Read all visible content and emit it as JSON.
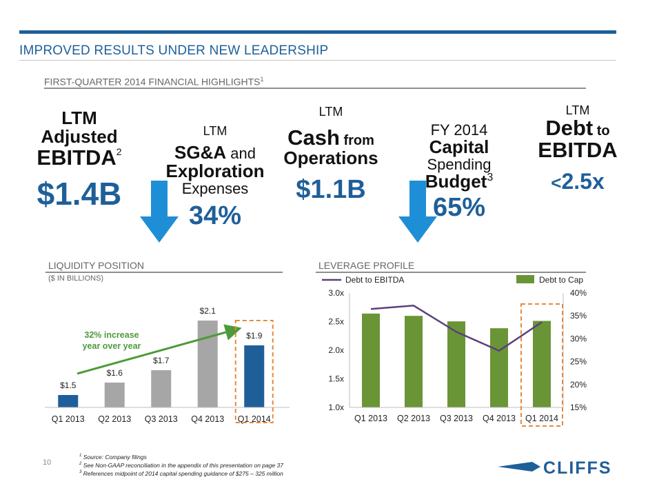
{
  "header": {
    "title": "IMPROVED RESULTS UNDER NEW LEADERSHIP",
    "subtitle": "FIRST-QUARTER 2014 FINANCIAL HIGHLIGHTS",
    "subtitle_sup": "1"
  },
  "kpis": {
    "ebitda": {
      "line1": "LTM",
      "line2": "Adjusted",
      "line3": "EBITDA",
      "sup": "2",
      "value": "$1.4B"
    },
    "sga": {
      "line1": "LTM",
      "line2a": "SG&A",
      "line2b": " and",
      "line3": "Exploration",
      "line4": "Expenses",
      "value": "34%",
      "direction": "down"
    },
    "cash": {
      "line1": "LTM",
      "line2a": "Cash",
      "line2b": " from",
      "line3": "Operations",
      "value": "$1.1B"
    },
    "capex": {
      "line1": "FY 2014",
      "line2": "Capital",
      "line3": "Spending",
      "line4": "Budget",
      "sup": "3",
      "value": "65%",
      "direction": "down"
    },
    "debt": {
      "line1": "LTM",
      "line2a": "Debt",
      "line2b": " to",
      "line3": "EBITDA",
      "value_prefix": "<",
      "value": "2.5x"
    }
  },
  "colors": {
    "brand_blue": "#1f5f99",
    "arrow_blue": "#1e8fd6",
    "bar_gray": "#a6a6a6",
    "bar_green": "#6a9537",
    "line_purple": "#5b3f7c",
    "highlight_orange": "#e8883a",
    "annotation_green": "#4d9a3a"
  },
  "liquidity": {
    "label": "LIQUIDITY POSITION",
    "sublabel": "($ IN BILLIONS)",
    "annotation": [
      "32% increase",
      "year over year"
    ]
  },
  "leverage": {
    "label": "LEVERAGE PROFILE"
  },
  "chart_data": [
    {
      "type": "bar",
      "title": "LIQUIDITY POSITION",
      "ylabel": "$ IN BILLIONS",
      "categories": [
        "Q1 2013",
        "Q2 2013",
        "Q3 2013",
        "Q4 2013",
        "Q1 2014"
      ],
      "values": [
        1.5,
        1.6,
        1.7,
        2.1,
        1.9
      ],
      "value_labels": [
        "$1.5",
        "$1.6",
        "$1.7",
        "$2.1",
        "$1.9"
      ],
      "highlight_category": "Q1 2014",
      "bar_colors": [
        "#1f5f99",
        "#a6a6a6",
        "#a6a6a6",
        "#a6a6a6",
        "#1f5f99"
      ],
      "ylim": [
        1.4,
        2.15
      ]
    },
    {
      "type": "bar",
      "title": "LEVERAGE PROFILE",
      "categories": [
        "Q1 2013",
        "Q2 2013",
        "Q3 2013",
        "Q4 2013",
        "Q1 2014"
      ],
      "series": [
        {
          "name": "Debt to Cap",
          "kind": "bar",
          "axis": "right",
          "values": [
            35.5,
            35.0,
            33.8,
            32.3,
            33.9
          ]
        },
        {
          "name": "Debt to EBITDA",
          "kind": "line",
          "axis": "left",
          "values": [
            2.72,
            2.78,
            2.32,
            1.99,
            2.49
          ]
        }
      ],
      "y_left": {
        "ticks": [
          "1.0x",
          "1.5x",
          "2.0x",
          "2.5x",
          "3.0x"
        ],
        "range": [
          1.0,
          3.0
        ]
      },
      "y_right": {
        "ticks": [
          "15%",
          "20%",
          "25%",
          "30%",
          "35%",
          "40%"
        ],
        "range": [
          15,
          40
        ]
      },
      "highlight_category": "Q1 2014",
      "legend": "top"
    }
  ],
  "footnotes": [
    {
      "num": "1",
      "text": "Source: Company filings"
    },
    {
      "num": "2",
      "text": "See Non-GAAP reconciliation in the appendix of this presentation on page 37"
    },
    {
      "num": "3",
      "text": "References midpoint of 2014 capital spending guidance of $275 – 325 million"
    }
  ],
  "page_number": "10",
  "logo": {
    "text": "CLIFFS"
  }
}
